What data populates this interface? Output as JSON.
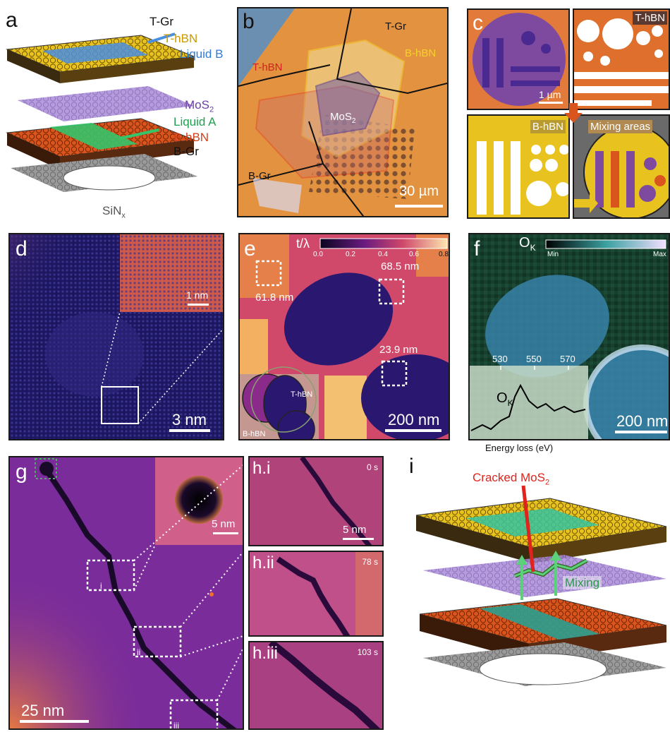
{
  "panels": {
    "a": {
      "label": "a",
      "layers": {
        "t_gr": "T-Gr",
        "t_hbn": "T-hBN",
        "liquid_b": "Liquid B",
        "mos2_base": "MoS",
        "mos2_sub": "2",
        "liquid_a": "Liquid A",
        "b_hbn": "B-hBN",
        "b_gr": "B-Gr",
        "sinx_base": "SiN",
        "sinx_sub": "x"
      }
    },
    "b": {
      "label": "b",
      "t_gr": "T-Gr",
      "b_hbn": "B-hBN",
      "t_hbn": "T-hBN",
      "mos2_base": "MoS",
      "mos2_sub": "2",
      "b_gr": "B-Gr",
      "scalebar": "30 µm"
    },
    "c": {
      "label": "c",
      "scalebar": "1 µm",
      "t_hbn": "T-hBN",
      "b_hbn": "B-hBN",
      "mixing": "Mixing areas"
    },
    "d": {
      "label": "d",
      "inset_scalebar": "1 nm",
      "scalebar": "3 nm"
    },
    "e": {
      "label": "e",
      "colorbar_title": "t/λ",
      "colorbar_ticks": [
        "0.0",
        "0.2",
        "0.4",
        "0.6",
        "0.8"
      ],
      "thickness_labels": [
        "61.8 nm",
        "68.5 nm",
        "23.9 nm"
      ],
      "inset_t_hbn": "T-hBN",
      "inset_b_hbn": "B-hBN",
      "scalebar": "200 nm"
    },
    "f": {
      "label": "f",
      "map_base": "O",
      "map_sub": "K",
      "colorbar_min": "Min",
      "colorbar_max": "Max",
      "spectrum_ticks": [
        "530",
        "550",
        "570"
      ],
      "spectrum_label_base": "O",
      "spectrum_label_sub": "K",
      "xlabel": "Energy loss (eV)",
      "scalebar": "200 nm"
    },
    "g": {
      "label": "g",
      "inset_scalebar": "5 nm",
      "roi_i": "i",
      "roi_ii": "ii",
      "roi_iii": "iii",
      "scalebar": "25 nm"
    },
    "h": {
      "frames": [
        {
          "label": "h.i",
          "time": "0 s",
          "scalebar": "5 nm"
        },
        {
          "label": "h.ii",
          "time": "78 s"
        },
        {
          "label": "h.iii",
          "time": "103 s"
        }
      ]
    },
    "i": {
      "label": "i",
      "cracked_base": "Cracked MoS",
      "cracked_sub": "2",
      "mixing": "Mixing"
    }
  },
  "colors": {
    "t_hbn": "#e8c21e",
    "b_hbn": "#d9551d",
    "mos2": "#8a5bc4",
    "liquid_a": "#35c46a",
    "liquid_b": "#4b8fe0",
    "graphene": "#8a8a8a",
    "map_dark": "#2a1a6e",
    "map_bright": "#e8905a",
    "arrow_red": "#e0231c",
    "mixing_green": "#5bd17a"
  }
}
